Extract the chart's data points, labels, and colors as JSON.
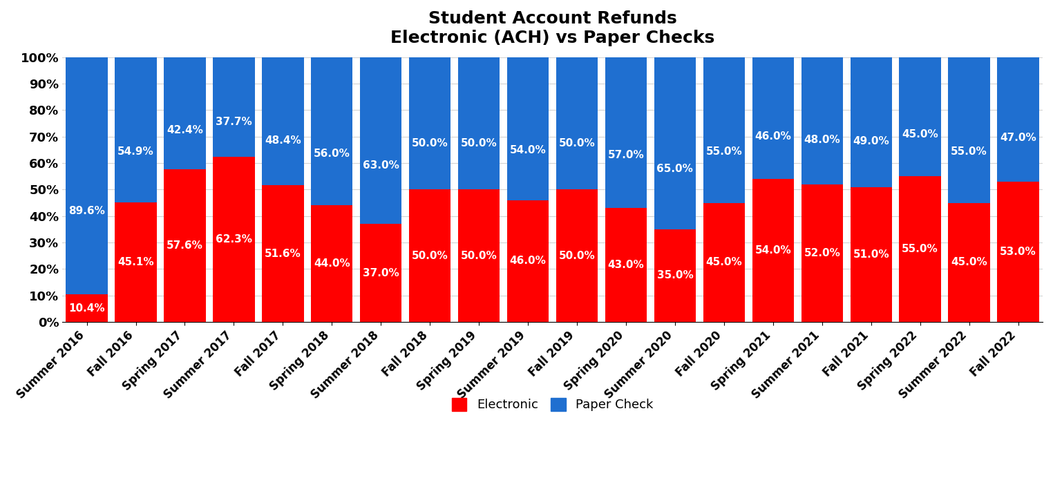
{
  "title": "Student Account Refunds\nElectronic (ACH) vs Paper Checks",
  "categories": [
    "Summer 2016",
    "Fall 2016",
    "Spring 2017",
    "Summer 2017",
    "Fall 2017",
    "Spring 2018",
    "Summer 2018",
    "Fall 2018",
    "Spring 2019",
    "Summer 2019",
    "Fall 2019",
    "Spring 2020",
    "Summer 2020",
    "Fall 2020",
    "Spring 2021",
    "Summer 2021",
    "Fall 2021",
    "Spring 2022",
    "Summer 2022",
    "Fall 2022"
  ],
  "electronic": [
    10.4,
    45.1,
    57.6,
    62.3,
    51.6,
    44.0,
    37.0,
    50.0,
    50.0,
    46.0,
    50.0,
    43.0,
    35.0,
    45.0,
    54.0,
    52.0,
    51.0,
    55.0,
    45.0,
    53.0
  ],
  "paper_check": [
    89.6,
    54.9,
    42.4,
    37.7,
    48.4,
    56.0,
    63.0,
    50.0,
    50.0,
    54.0,
    50.0,
    57.0,
    65.0,
    55.0,
    46.0,
    48.0,
    49.0,
    45.0,
    55.0,
    47.0
  ],
  "color_electronic": "#FF0000",
  "color_paper": "#1F6FD0",
  "title_fontsize": 18,
  "tick_fontsize": 13,
  "legend_fontsize": 13,
  "bar_label_fontsize": 11,
  "bar_label_color": "white",
  "background_color": "#FFFFFF",
  "ylabel_ticks": [
    "0%",
    "10%",
    "20%",
    "30%",
    "40%",
    "50%",
    "60%",
    "70%",
    "80%",
    "90%",
    "100%"
  ],
  "yticks": [
    0,
    10,
    20,
    30,
    40,
    50,
    60,
    70,
    80,
    90,
    100
  ],
  "bar_width": 0.85
}
